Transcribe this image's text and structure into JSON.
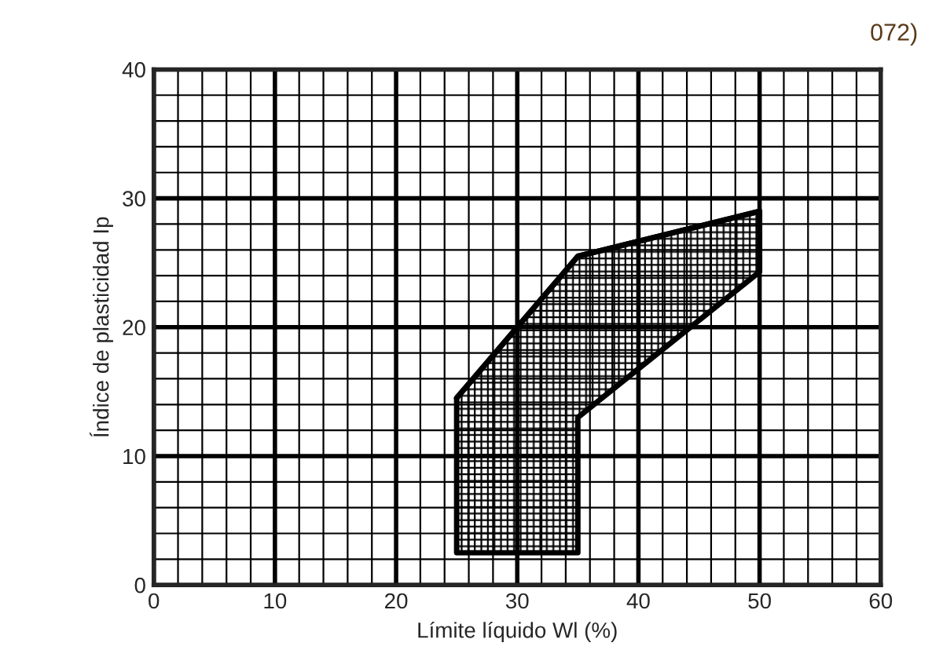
{
  "chart_data": {
    "type": "line",
    "xlabel": "Límite líquido Wl (%)",
    "ylabel": "Índice de plasticidad Ip",
    "annotations": [
      "072)"
    ],
    "series": [
      {
        "color": "#000000",
        "x": [
          25,
          35,
          35,
          50
        ],
        "values": [
          14.5,
          25.5,
          25.5,
          29
        ],
        "lower": [
          2.5,
          2.5,
          13,
          24.3
        ],
        "upper": [
          14.5,
          25.5,
          25.5,
          29
        ]
      }
    ],
    "xlim": [
      0,
      60
    ],
    "ylim": [
      0,
      40
    ],
    "xticks": [
      0,
      {
        "value": 2,
        "label": null
      },
      {
        "value": 4,
        "label": null
      },
      {
        "value": 6,
        "label": null
      },
      {
        "value": 8,
        "label": null
      },
      10,
      {
        "value": 12,
        "label": null
      },
      {
        "value": 14,
        "label": null
      },
      {
        "value": 16,
        "label": null
      },
      {
        "value": 18,
        "label": null
      },
      20,
      {
        "value": 22,
        "label": null
      },
      {
        "value": 24,
        "label": null
      },
      {
        "value": 26,
        "label": null
      },
      {
        "value": 28,
        "label": null
      },
      30,
      {
        "value": 32,
        "label": null
      },
      {
        "value": 34,
        "label": null
      },
      {
        "value": 36,
        "label": null
      },
      {
        "value": 38,
        "label": null
      },
      40,
      {
        "value": 42,
        "label": null
      },
      {
        "value": 44,
        "label": null
      },
      {
        "value": 46,
        "label": null
      },
      {
        "value": 48,
        "label": null
      },
      50,
      {
        "value": 52,
        "label": null
      },
      {
        "value": 54,
        "label": null
      },
      {
        "value": 56,
        "label": null
      },
      {
        "value": 58,
        "label": null
      },
      60
    ],
    "yticks": [
      0,
      {
        "value": 2,
        "label": null
      },
      {
        "value": 4,
        "label": null
      },
      {
        "value": 6,
        "label": null
      },
      {
        "value": 8,
        "label": null
      },
      10,
      {
        "value": 12,
        "label": null
      },
      {
        "value": 14,
        "label": null
      },
      {
        "value": 16,
        "label": null
      },
      {
        "value": 18,
        "label": null
      },
      20,
      {
        "value": 22,
        "label": null
      },
      {
        "value": 24,
        "label": null
      },
      {
        "value": 26,
        "label": null
      },
      {
        "value": 28,
        "label": null
      },
      30,
      {
        "value": 32,
        "label": null
      },
      {
        "value": 34,
        "label": null
      },
      {
        "value": 36,
        "label": null
      },
      {
        "value": 38,
        "label": null
      },
      40
    ],
    "grid": true,
    "legend": false
  }
}
